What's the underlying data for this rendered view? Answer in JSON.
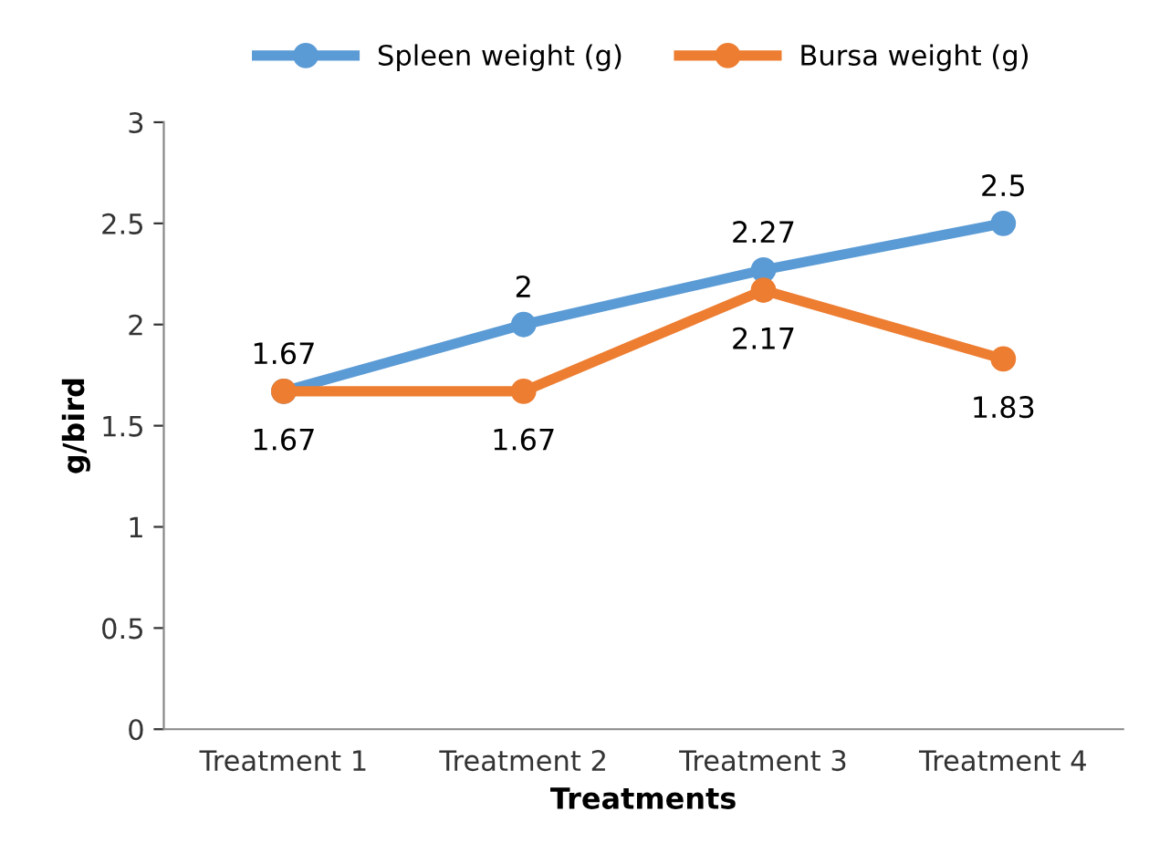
{
  "chart_data": {
    "type": "line",
    "xlabel": "Treatments",
    "ylabel": "g/bird",
    "categories": [
      "Treatment 1",
      "Treatment 2",
      "Treatment 3",
      "Treatment 4"
    ],
    "series": [
      {
        "name": "Spleen weight (g)",
        "color": "#5b9bd5",
        "values": [
          1.67,
          2,
          2.27,
          2.5
        ]
      },
      {
        "name": "Bursa weight (g)",
        "color": "#ed7d31",
        "values": [
          1.67,
          1.67,
          2.17,
          1.83
        ]
      }
    ],
    "ylim": [
      0,
      3
    ],
    "yticks": [
      0,
      0.5,
      1,
      1.5,
      2,
      2.5,
      3
    ],
    "grid": false,
    "legend": "top",
    "marker": "circle",
    "line_style": "solid",
    "data_labels": true
  }
}
